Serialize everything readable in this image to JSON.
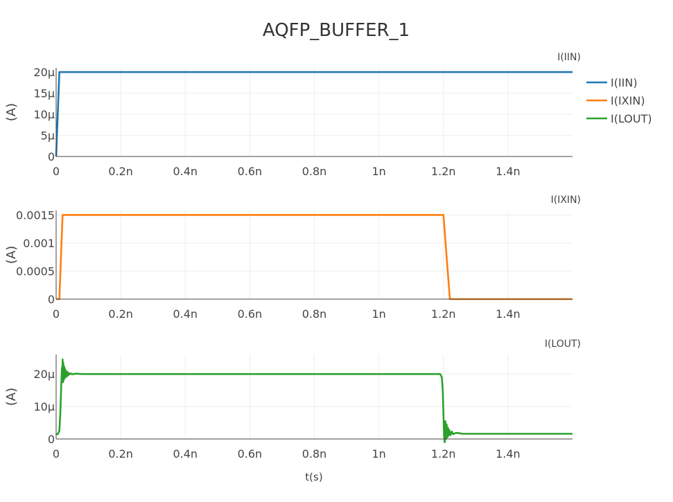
{
  "chart_data": {
    "type": "line",
    "title": "AQFP_BUFFER_1",
    "xlabel": "t(s)",
    "legend": {
      "placement": "top-right",
      "entries": [
        {
          "name": "I(IIN)",
          "color": "#1f77b4"
        },
        {
          "name": "I(IXIN)",
          "color": "#ff7f0e"
        },
        {
          "name": "I(LOUT)",
          "color": "#2ca02c"
        }
      ]
    },
    "x_ticks": [
      "0",
      "0.2n",
      "0.4n",
      "0.6n",
      "0.8n",
      "1n",
      "1.2n",
      "1.4n"
    ],
    "x_tick_values": [
      0,
      2e-10,
      4e-10,
      6e-10,
      8e-10,
      1e-09,
      1.2e-09,
      1.4e-09
    ],
    "xlim": [
      0,
      1.6e-09
    ],
    "grid": true,
    "subplots": [
      {
        "subtitle": "I(IIN)",
        "ylabel": "(A)",
        "color": "#1f77b4",
        "ylim": [
          0,
          2.1e-05
        ],
        "y_ticks": [
          "0",
          "5μ",
          "10μ",
          "15μ",
          "20μ"
        ],
        "y_tick_values": [
          0,
          5e-06,
          1e-05,
          1.5e-05,
          2e-05
        ],
        "series": {
          "name": "I(IIN)",
          "x": [
            0,
            1e-11,
            1.6e-09
          ],
          "y": [
            0,
            2e-05,
            2e-05
          ]
        }
      },
      {
        "subtitle": "I(IXIN)",
        "ylabel": "(A)",
        "color": "#ff7f0e",
        "ylim": [
          0,
          0.00158
        ],
        "y_ticks": [
          "0",
          "0.0005",
          "0.001",
          "0.0015"
        ],
        "y_tick_values": [
          0,
          0.0005,
          0.001,
          0.0015
        ],
        "series": {
          "name": "I(IXIN)",
          "x": [
            0,
            1e-11,
            2e-11,
            1.2e-09,
            1.22e-09,
            1.6e-09
          ],
          "y": [
            0,
            0,
            0.0015,
            0.0015,
            0,
            0
          ]
        }
      },
      {
        "subtitle": "I(LOUT)",
        "ylabel": "(A)",
        "color": "#2ca02c",
        "ylim": [
          0,
          2.6e-05
        ],
        "y_ticks": [
          "0",
          "10μ",
          "20μ"
        ],
        "y_tick_values": [
          0,
          1e-05,
          2e-05
        ],
        "series": {
          "name": "I(LOUT)",
          "x": [
            0,
            5e-12,
            1e-11,
            1.3e-11,
            1.6e-11,
            1.8e-11,
            1.9e-11,
            2e-11,
            2.1e-11,
            2.2e-11,
            2.3e-11,
            2.4e-11,
            2.5e-11,
            2.6e-11,
            2.7e-11,
            2.8e-11,
            2.9e-11,
            3e-11,
            3.2e-11,
            3.4e-11,
            3.6e-11,
            3.8e-11,
            4e-11,
            4.5e-11,
            5e-11,
            6e-11,
            8e-11,
            1e-10,
            3.3e-10,
            1.19e-09,
            1.195e-09,
            1.198e-09,
            1.2e-09,
            1.202e-09,
            1.204e-09,
            1.206e-09,
            1.208e-09,
            1.21e-09,
            1.212e-09,
            1.214e-09,
            1.216e-09,
            1.218e-09,
            1.222e-09,
            1.226e-09,
            1.23e-09,
            1.24e-09,
            1.26e-09,
            1.3e-09,
            1.6e-09
          ],
          "y": [
            1.5e-06,
            1.5e-06,
            2.5e-06,
            8e-06,
            1.7e-05,
            2.2e-05,
            1.9e-05,
            2.45e-05,
            1.75e-05,
            2.35e-05,
            1.8e-05,
            2.25e-05,
            1.85e-05,
            2.2e-05,
            1.88e-05,
            2.15e-05,
            1.9e-05,
            2.1e-05,
            1.92e-05,
            2.07e-05,
            1.95e-05,
            2.04e-05,
            1.98e-05,
            2.02e-05,
            1.99e-05,
            2.01e-05,
            2e-05,
            2e-05,
            2e-05,
            2e-05,
            1.9e-05,
            1.5e-05,
            8e-06,
            1e-06,
            -1e-06,
            5.5e-06,
            0,
            4.5e-06,
            5e-07,
            3.5e-06,
            1e-06,
            2.8e-06,
            1.2e-06,
            2.3e-06,
            1.5e-06,
            1.9e-06,
            1.6e-06,
            1.6e-06,
            1.6e-06
          ]
        }
      }
    ]
  }
}
